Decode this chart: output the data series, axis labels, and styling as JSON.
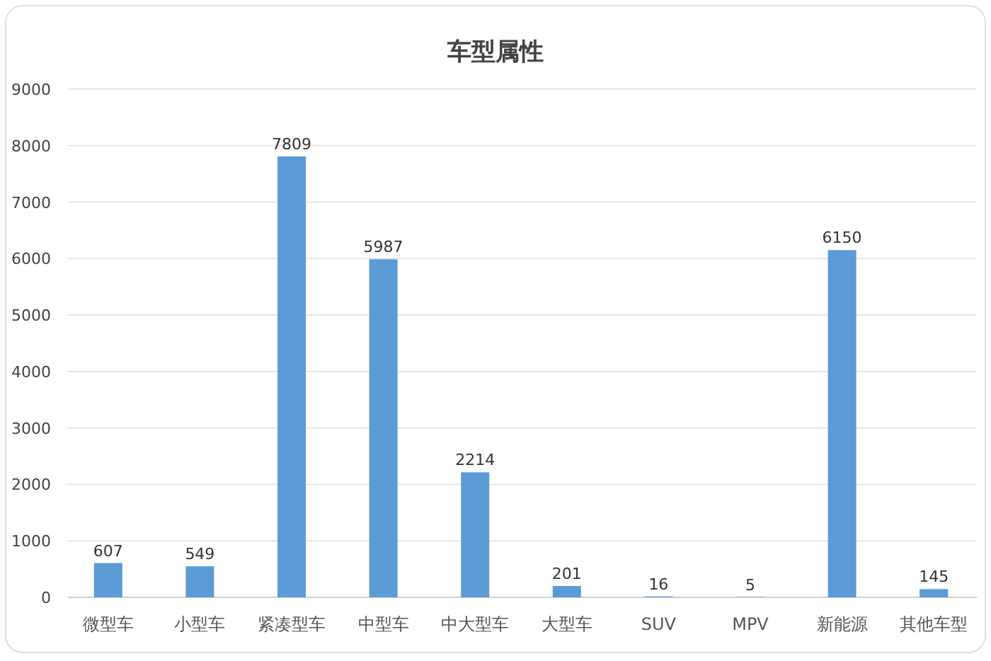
{
  "chart_data": {
    "type": "bar",
    "title": "车型属性",
    "categories": [
      "微型车",
      "小型车",
      "紧凑型车",
      "中型车",
      "中大型车",
      "大型车",
      "SUV",
      "MPV",
      "新能源",
      "其他车型"
    ],
    "values": [
      607,
      549,
      7809,
      5987,
      2214,
      201,
      16,
      5,
      6150,
      145
    ],
    "color": "#5b9bd5",
    "data_labels": true,
    "grid": "y",
    "ylim": [
      0,
      9000
    ],
    "yticks": [
      0,
      1000,
      2000,
      3000,
      4000,
      5000,
      6000,
      7000,
      8000,
      9000
    ]
  }
}
